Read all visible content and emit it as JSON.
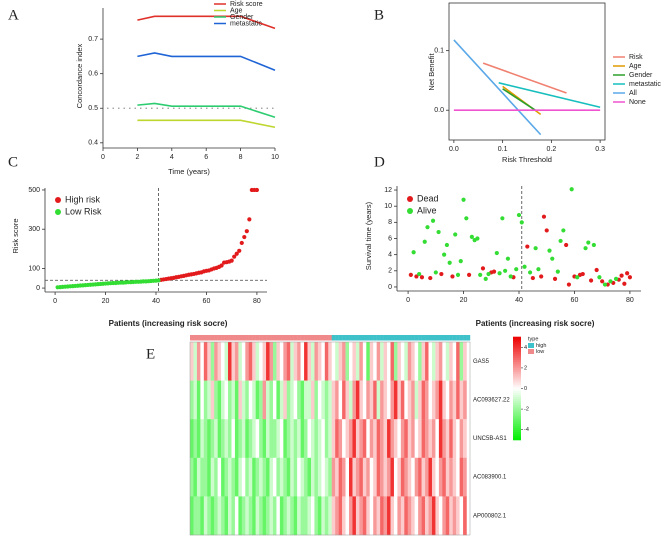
{
  "chart_data": [
    {
      "panel": "A",
      "type": "line",
      "frame": "open",
      "x_label": "Time (years)",
      "y_label": "Concordance index",
      "x": [
        2,
        3,
        4,
        8,
        10
      ],
      "xlim": [
        0,
        10
      ],
      "xticks": [
        0,
        2,
        4,
        6,
        8,
        10
      ],
      "ylim": [
        0.385,
        0.79
      ],
      "yticks": [
        0.4,
        0.5,
        0.6,
        0.7
      ],
      "reference_line": 0.5,
      "reference_color": "#999999",
      "series": [
        {
          "name": "Risk score",
          "color": "#E0302A",
          "values": [
            0.755,
            0.766,
            0.766,
            0.766,
            0.731
          ]
        },
        {
          "name": "Age",
          "color": "#BFD62F",
          "values": [
            0.465,
            0.465,
            0.465,
            0.465,
            0.445
          ]
        },
        {
          "name": "Gender",
          "color": "#2ECC71",
          "values": [
            0.509,
            0.514,
            0.506,
            0.506,
            0.474
          ]
        },
        {
          "name": "metastatic",
          "color": "#1F64D6",
          "values": [
            0.65,
            0.66,
            0.65,
            0.65,
            0.61
          ]
        }
      ]
    },
    {
      "panel": "B",
      "type": "line",
      "frame": "box",
      "x_label": "Risk Threshold",
      "y_label": "Net Benefit",
      "xlim": [
        -0.01,
        0.31
      ],
      "xticks": [
        {
          "value": 0,
          "label": "0.0"
        },
        0.1,
        0.2,
        0.3
      ],
      "ylim": [
        -0.05,
        0.18
      ],
      "yticks": [
        {
          "value": 0,
          "label": "0.0"
        },
        0.1
      ],
      "series": [
        {
          "name": "Risk",
          "color": "#F08070",
          "x": [
            0.06,
            0.231
          ],
          "values": [
            0.079,
            0.029
          ]
        },
        {
          "name": "Age",
          "color": "#E09A00",
          "x": [
            0.1,
            0.178
          ],
          "values": [
            0.04,
            -0.007
          ]
        },
        {
          "name": "Gender",
          "color": "#2CA02C",
          "x": [
            0.1,
            0.167
          ],
          "values": [
            0.036,
            0
          ]
        },
        {
          "name": "metastatic",
          "color": "#17BEBE",
          "x": [
            0.092,
            0.3
          ],
          "values": [
            0.046,
            0.005
          ]
        },
        {
          "name": "All",
          "color": "#5AA8E8",
          "x": [
            0,
            0.178
          ],
          "values": [
            0.118,
            -0.041
          ]
        },
        {
          "name": "None",
          "color": "#F052D0",
          "x": [
            0,
            0.3
          ],
          "values": [
            0,
            0
          ]
        }
      ]
    },
    {
      "panel": "C",
      "type": "scatter",
      "frame": "open",
      "x_label": "Patients (increasing risk socre)",
      "y_label": "Risk score",
      "xlim": [
        -4,
        84
      ],
      "xticks": [
        0,
        20,
        40,
        60,
        80
      ],
      "ylim": [
        -20,
        510
      ],
      "yticks": [
        0,
        100,
        300,
        500
      ],
      "vline": 41,
      "hline": 40,
      "series": [
        {
          "name": "High risk",
          "color": "#E31A1C",
          "x": [
            42,
            43,
            44,
            45,
            46,
            47,
            48,
            49,
            50,
            51,
            52,
            53,
            54,
            55,
            56,
            57,
            58,
            59,
            60,
            61,
            62,
            63,
            64,
            65,
            66,
            67,
            68,
            69,
            70,
            71,
            72,
            73,
            74,
            75,
            76,
            77,
            78,
            79,
            80
          ],
          "values": [
            42,
            44,
            46,
            48,
            50,
            52,
            55,
            57,
            60,
            62,
            65,
            68,
            70,
            72,
            75,
            78,
            80,
            85,
            88,
            90,
            95,
            100,
            103,
            108,
            115,
            130,
            132,
            135,
            140,
            160,
            175,
            190,
            230,
            260,
            290,
            350,
            500,
            500,
            500
          ]
        },
        {
          "name": "Low Risk",
          "color": "#33DD33",
          "x": [
            1,
            2,
            3,
            4,
            5,
            6,
            7,
            8,
            9,
            10,
            11,
            12,
            13,
            14,
            15,
            16,
            17,
            18,
            19,
            20,
            21,
            22,
            23,
            24,
            25,
            26,
            27,
            28,
            29,
            30,
            31,
            32,
            33,
            34,
            35,
            36,
            37,
            38,
            39,
            40,
            41
          ],
          "values": [
            4,
            5,
            6,
            7,
            8,
            9,
            10,
            11,
            12,
            13,
            14,
            15,
            16,
            17,
            18,
            19,
            20,
            21,
            22,
            23,
            24,
            25,
            26,
            26,
            27,
            28,
            28,
            29,
            30,
            30,
            31,
            32,
            32,
            33,
            34,
            34,
            35,
            36,
            37,
            38,
            39
          ]
        }
      ]
    },
    {
      "panel": "D",
      "type": "scatter",
      "frame": "open",
      "x_label": "Patients (increasing risk socre)",
      "y_label": "Survival time (years)",
      "xlim": [
        -4,
        84
      ],
      "xticks": [
        0,
        20,
        40,
        60,
        80
      ],
      "ylim": [
        -0.5,
        12.5
      ],
      "yticks": [
        0,
        2,
        4,
        6,
        8,
        10,
        12
      ],
      "vline": 41,
      "series": [
        {
          "name": "Dead",
          "color": "#E31A1C",
          "x": [
            1,
            3,
            5,
            8,
            12,
            16,
            22,
            27,
            30,
            31,
            38,
            43,
            45,
            48,
            49,
            50,
            53,
            57,
            58,
            60,
            62,
            63,
            66,
            68,
            70,
            72,
            74,
            76,
            77,
            78,
            79,
            80
          ],
          "values": [
            1.5,
            1.3,
            1.2,
            1.1,
            1.6,
            1.3,
            1.5,
            2.3,
            1.8,
            1.9,
            1.2,
            5.0,
            1.1,
            1.3,
            8.7,
            7.0,
            1.0,
            5.2,
            0.3,
            1.3,
            1.5,
            1.6,
            0.8,
            2.1,
            0.7,
            0.3,
            0.5,
            0.9,
            1.4,
            0.4,
            1.7,
            1.2
          ]
        },
        {
          "name": "Alive",
          "color": "#33DD33",
          "x": [
            2,
            4,
            6,
            7,
            9,
            10,
            11,
            13,
            14,
            15,
            17,
            18,
            19,
            20,
            21,
            23,
            24,
            25,
            26,
            28,
            29,
            32,
            33,
            34,
            35,
            36,
            37,
            39,
            40,
            41,
            42,
            44,
            46,
            47,
            51,
            52,
            54,
            55,
            56,
            59,
            61,
            64,
            65,
            67,
            69,
            71,
            73,
            75
          ],
          "values": [
            4.3,
            1.6,
            5.6,
            7.4,
            8.2,
            1.8,
            6.8,
            4.0,
            5.2,
            3.0,
            6.5,
            1.5,
            3.2,
            10.8,
            8.5,
            6.2,
            5.8,
            6.0,
            1.5,
            1.0,
            1.6,
            4.2,
            1.7,
            8.5,
            2.0,
            3.5,
            1.3,
            2.2,
            8.9,
            8.0,
            2.5,
            1.8,
            4.8,
            2.2,
            4.5,
            3.5,
            1.9,
            5.7,
            7.0,
            12.1,
            1.2,
            4.8,
            5.5,
            5.2,
            1.2,
            0.3,
            0.7,
            1.0
          ]
        }
      ]
    },
    {
      "panel": "E",
      "type": "heatmap",
      "rows": [
        "GAS5",
        "AC093627.22",
        "UNC5B-AS1",
        "AC083900.1",
        "AP000802.1"
      ],
      "clim": [
        -5,
        5
      ],
      "colors": [
        "#00EE00",
        "#FFFFFF",
        "#EE0000"
      ],
      "colorbar_ticks": [
        4,
        2,
        0,
        -2,
        -4
      ],
      "type_title": "type",
      "type_legend": [
        {
          "name": "high",
          "color": "#3FC1C9"
        },
        {
          "name": "low",
          "color": "#F08A8A"
        }
      ],
      "column_type": [
        "low",
        "low",
        "low",
        "low",
        "low",
        "low",
        "low",
        "low",
        "low",
        "low",
        "low",
        "low",
        "low",
        "low",
        "low",
        "low",
        "low",
        "low",
        "low",
        "low",
        "low",
        "low",
        "low",
        "low",
        "low",
        "low",
        "low",
        "low",
        "low",
        "low",
        "low",
        "low",
        "low",
        "low",
        "low",
        "low",
        "low",
        "low",
        "low",
        "low",
        "low",
        "high",
        "high",
        "high",
        "high",
        "high",
        "high",
        "high",
        "high",
        "high",
        "high",
        "high",
        "high",
        "high",
        "high",
        "high",
        "high",
        "high",
        "high",
        "high",
        "high",
        "high",
        "high",
        "high",
        "high",
        "high",
        "high",
        "high",
        "high",
        "high",
        "high",
        "high",
        "high",
        "high",
        "high",
        "high",
        "high",
        "high",
        "high",
        "high",
        "high"
      ],
      "values": [
        [
          1,
          -1,
          2,
          0,
          3,
          1,
          -2,
          2,
          1,
          0,
          -1,
          4,
          1,
          2,
          -1,
          0,
          2,
          3,
          1,
          -1,
          0,
          1,
          4,
          2,
          -2,
          1,
          0,
          2,
          3,
          -1,
          1,
          2,
          0,
          4,
          1,
          -1,
          2,
          1,
          0,
          3,
          1,
          0,
          -1,
          1,
          2,
          -2,
          0,
          1,
          -1,
          2,
          0,
          -3,
          1,
          0,
          2,
          -1,
          1,
          0,
          3,
          -2,
          1,
          0,
          -1,
          2,
          1,
          0,
          -2,
          1,
          3,
          0,
          -1,
          1,
          2,
          0,
          -1,
          1,
          0,
          3,
          -2,
          1
        ],
        [
          -2,
          -1,
          -3,
          0,
          -2,
          -1,
          1,
          -2,
          -3,
          -1,
          0,
          -2,
          -1,
          -3,
          1,
          -1,
          -2,
          0,
          -1,
          -3,
          -2,
          2,
          -1,
          -2,
          0,
          -3,
          -1,
          1,
          -2,
          -1,
          0,
          -2,
          -3,
          -1,
          -1,
          1,
          -2,
          0,
          -1,
          -2,
          -1,
          1,
          2,
          0,
          3,
          1,
          -1,
          2,
          4,
          1,
          0,
          2,
          1,
          3,
          -1,
          2,
          1,
          0,
          2,
          4,
          1,
          3,
          0,
          1,
          2,
          -1,
          1,
          3,
          2,
          0,
          1,
          2,
          4,
          1,
          0,
          2,
          1,
          3,
          1,
          2
        ],
        [
          -3,
          -2,
          -3,
          -1,
          -2,
          -3,
          -2,
          -1,
          -3,
          -2,
          -1,
          -2,
          0,
          -3,
          -2,
          -1,
          -3,
          -2,
          -1,
          0,
          -2,
          -3,
          -1,
          -2,
          -2,
          -1,
          0,
          -3,
          -2,
          -1,
          -2,
          -1,
          -3,
          -2,
          0,
          -1,
          -2,
          -1,
          0,
          -2,
          -1,
          1,
          3,
          2,
          0,
          1,
          2,
          4,
          1,
          2,
          3,
          0,
          2,
          1,
          3,
          2,
          1,
          4,
          2,
          1,
          0,
          2,
          3,
          1,
          2,
          0,
          1,
          3,
          2,
          1,
          2,
          0,
          4,
          2,
          1,
          3,
          1,
          0,
          2,
          1
        ],
        [
          -2,
          -3,
          -1,
          -2,
          -2,
          -3,
          -1,
          -2,
          0,
          -3,
          -2,
          -1,
          -2,
          -3,
          -1,
          0,
          -2,
          -1,
          -3,
          -2,
          -1,
          -2,
          -3,
          -1,
          0,
          -2,
          -1,
          -2,
          -3,
          -1,
          -2,
          0,
          -1,
          -2,
          -3,
          -1,
          -2,
          -1,
          0,
          -1,
          -2,
          2,
          1,
          3,
          2,
          0,
          4,
          1,
          2,
          3,
          1,
          2,
          0,
          1,
          3,
          2,
          1,
          2,
          4,
          0,
          1,
          3,
          2,
          1,
          0,
          2,
          3,
          1,
          2,
          4,
          1,
          0,
          2,
          3,
          1,
          2,
          1,
          0,
          3,
          2
        ],
        [
          -3,
          -2,
          -2,
          -3,
          -1,
          -2,
          -3,
          -2,
          -1,
          -2,
          -3,
          -1,
          -2,
          0,
          -3,
          -2,
          -1,
          -2,
          -3,
          -1,
          -2,
          -3,
          -2,
          -1,
          -2,
          0,
          -3,
          -2,
          -1,
          -2,
          -3,
          -1,
          -2,
          -2,
          -1,
          0,
          -2,
          -3,
          -1,
          -2,
          -1,
          1,
          2,
          3,
          1,
          0,
          2,
          4,
          1,
          2,
          3,
          1,
          0,
          2,
          1,
          3,
          2,
          4,
          1,
          0,
          2,
          1,
          3,
          2,
          1,
          0,
          2,
          3,
          1,
          2,
          4,
          1,
          0,
          2,
          3,
          1,
          2,
          1,
          0,
          3
        ]
      ]
    }
  ]
}
